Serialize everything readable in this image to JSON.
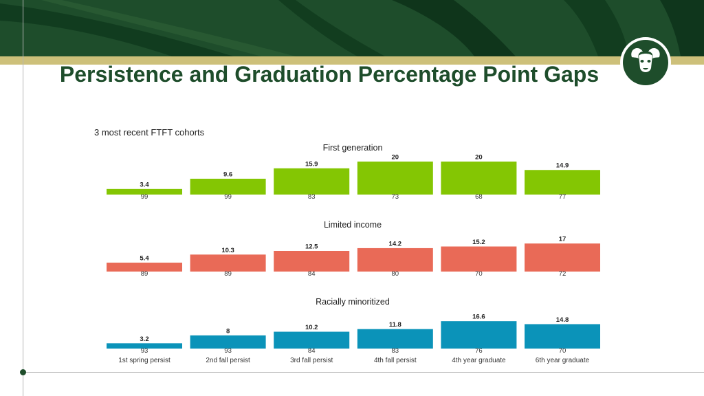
{
  "slide": {
    "title": "Persistence and Graduation Percentage Point Gaps"
  },
  "colors": {
    "brand_green": "#1e4d2b",
    "gold": "#cdc07a"
  },
  "logo": {
    "icon": "ram-head-icon"
  },
  "chart_data": {
    "type": "bar",
    "subtitle": "3 most recent FTFT cohorts",
    "categories": [
      "1st spring persist",
      "2nd fall persist",
      "3rd fall persist",
      "4th fall persist",
      "4th year graduate",
      "6th year graduate"
    ],
    "panels": [
      {
        "title": "First generation",
        "color": "#84c603",
        "values": [
          3.4,
          9.6,
          15.9,
          20,
          20,
          14.9
        ],
        "values_below": [
          99,
          99,
          83,
          73,
          68,
          77
        ]
      },
      {
        "title": "Limited income",
        "color": "#e96a57",
        "values": [
          5.4,
          10.3,
          12.5,
          14.2,
          15.2,
          17
        ],
        "values_below": [
          89,
          89,
          84,
          80,
          70,
          72
        ]
      },
      {
        "title": "Racially minoritized",
        "color": "#0b93b9",
        "values": [
          3.2,
          8,
          10.2,
          11.8,
          16.6,
          14.8
        ],
        "values_below": [
          93,
          93,
          84,
          83,
          76,
          70
        ]
      }
    ],
    "ylim": [
      0,
      20
    ],
    "grid": false
  }
}
